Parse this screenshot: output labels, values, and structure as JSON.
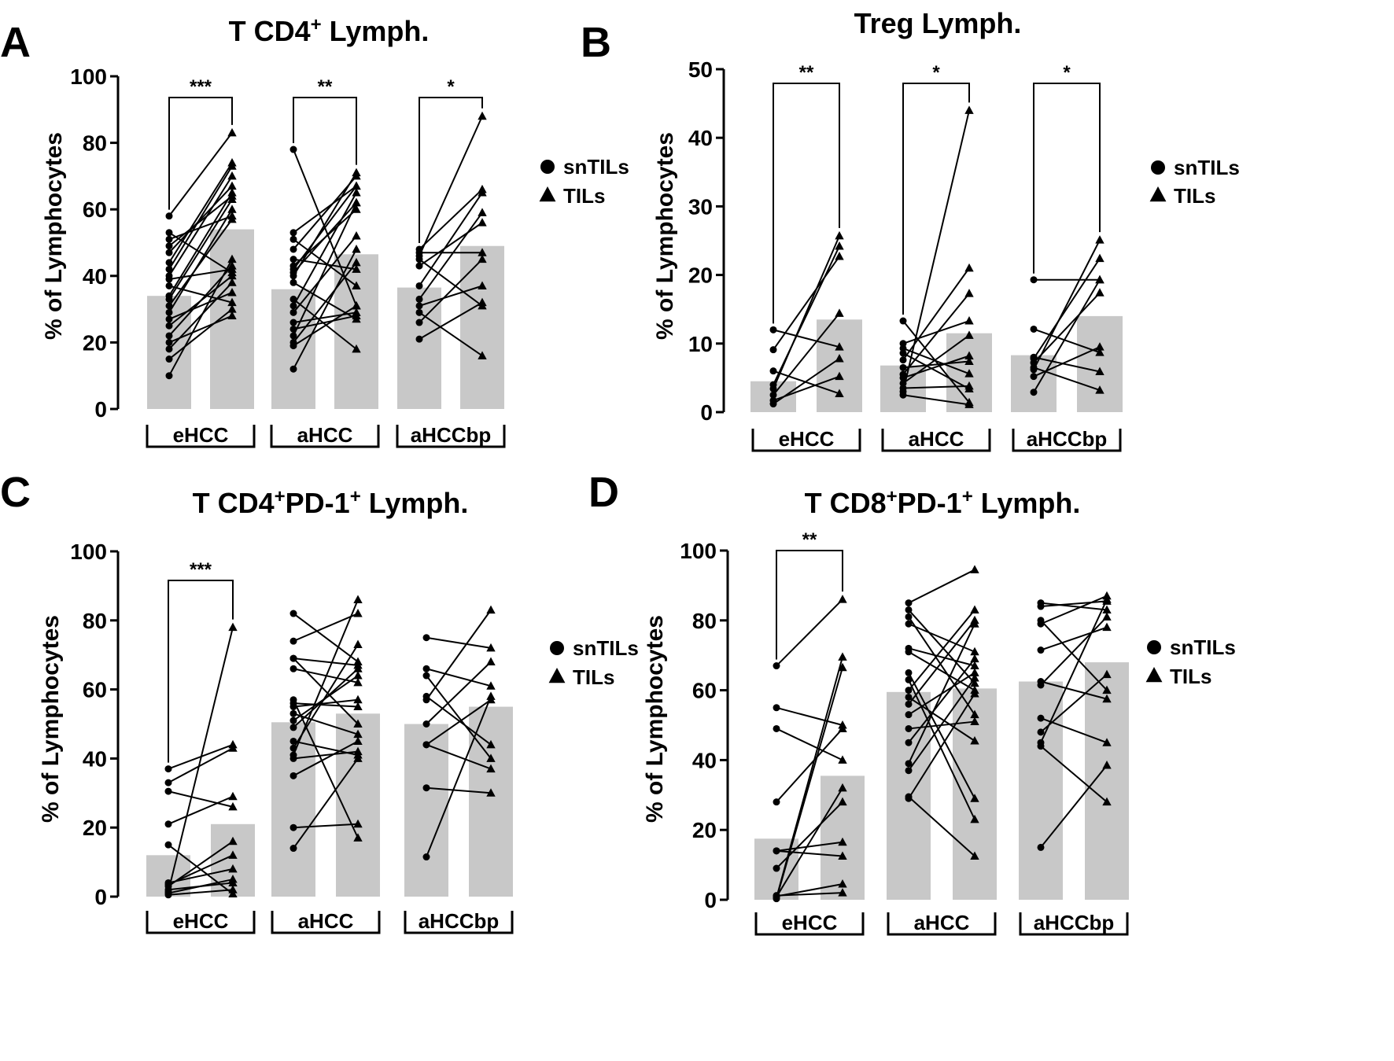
{
  "chart_data": [
    {
      "type": "bar",
      "panel": "A",
      "title": "T CD4",
      "title_sup": "+",
      "title_tail": " Lymph.",
      "ylabel": "% of Lymphocytes",
      "ylim": [
        0,
        100
      ],
      "yticks": [
        0,
        20,
        40,
        60,
        80,
        100
      ],
      "groups": [
        "eHCC",
        "aHCC",
        "aHCCbp"
      ],
      "series_names": [
        "snTILs",
        "TILs"
      ],
      "bar_means": [
        [
          34,
          54
        ],
        [
          36,
          46.5
        ],
        [
          36.5,
          49
        ]
      ],
      "paired": [
        [
          [
            10,
            45
          ],
          [
            15,
            30
          ],
          [
            18,
            38
          ],
          [
            20,
            28
          ],
          [
            22,
            43
          ],
          [
            25,
            40
          ],
          [
            27,
            35
          ],
          [
            29,
            60
          ],
          [
            31,
            57
          ],
          [
            33,
            63
          ],
          [
            34,
            65
          ],
          [
            37,
            32
          ],
          [
            39,
            42
          ],
          [
            40,
            70
          ],
          [
            42,
            73
          ],
          [
            44,
            74
          ],
          [
            47,
            67
          ],
          [
            49,
            64
          ],
          [
            51,
            58
          ],
          [
            53,
            41
          ],
          [
            58,
            83
          ]
        ],
        [
          [
            12,
            48
          ],
          [
            19,
            31
          ],
          [
            20,
            44
          ],
          [
            22,
            62
          ],
          [
            24,
            28
          ],
          [
            26,
            29
          ],
          [
            29,
            52
          ],
          [
            31,
            65
          ],
          [
            33,
            18
          ],
          [
            38,
            27
          ],
          [
            40,
            71
          ],
          [
            41,
            62
          ],
          [
            42,
            67
          ],
          [
            43,
            60
          ],
          [
            45,
            42
          ],
          [
            48,
            70
          ],
          [
            51,
            37
          ],
          [
            53,
            67
          ],
          [
            78,
            31
          ]
        ],
        [
          [
            21,
            32
          ],
          [
            26,
            45
          ],
          [
            29,
            16
          ],
          [
            31,
            37
          ],
          [
            33,
            59
          ],
          [
            37,
            65
          ],
          [
            43,
            56
          ],
          [
            45,
            31
          ],
          [
            46,
            88
          ],
          [
            47,
            47
          ],
          [
            48,
            66
          ]
        ]
      ],
      "significance": [
        "***",
        "**",
        "*"
      ]
    },
    {
      "type": "bar",
      "panel": "B",
      "title": "Treg Lymph.",
      "ylabel": "% of Lymphocytes",
      "ylim": [
        0,
        50
      ],
      "yticks": [
        0,
        10,
        20,
        30,
        40,
        50
      ],
      "groups": [
        "eHCC",
        "aHCC",
        "aHCCbp"
      ],
      "series_names": [
        "snTILs",
        "TILs"
      ],
      "bar_means": [
        [
          4.5,
          13.5
        ],
        [
          6.8,
          11.5
        ],
        [
          8.3,
          14
        ]
      ],
      "paired": [
        [
          [
            1.2,
            7.8
          ],
          [
            1.7,
            5.2
          ],
          [
            2.5,
            14.4
          ],
          [
            3.4,
            25.7
          ],
          [
            4,
            24.2
          ],
          [
            6,
            2.7
          ],
          [
            9.1,
            22.7
          ],
          [
            12,
            9.5
          ]
        ],
        [
          [
            2.5,
            1.1
          ],
          [
            3,
            44
          ],
          [
            3.5,
            3.8
          ],
          [
            4.2,
            11.2
          ],
          [
            5,
            8.2
          ],
          [
            5.5,
            17.3
          ],
          [
            6.5,
            7.4
          ],
          [
            7.6,
            21
          ],
          [
            8.6,
            3.4
          ],
          [
            9.3,
            5.6
          ],
          [
            10,
            13.3
          ],
          [
            13.3,
            1.4
          ]
        ],
        [
          [
            2.9,
            19.3
          ],
          [
            5.2,
            9.5
          ],
          [
            6.2,
            25.1
          ],
          [
            7.2,
            17.4
          ],
          [
            7.8,
            22.4
          ],
          [
            8,
            5.9
          ],
          [
            12.1,
            8.7
          ],
          [
            19.3,
            19.3
          ],
          [
            6.5,
            3.2
          ]
        ]
      ],
      "significance": [
        "**",
        "*",
        "*"
      ]
    },
    {
      "type": "bar",
      "panel": "C",
      "title": "T CD4",
      "title_sup": "+",
      "title_mid": "PD-1",
      "title_sup2": "+",
      "title_tail": " Lymph.",
      "ylabel": "% of Lymphocytes",
      "ylim": [
        0,
        100
      ],
      "yticks": [
        0,
        20,
        40,
        60,
        80,
        100
      ],
      "groups": [
        "eHCC",
        "aHCC",
        "aHCCbp"
      ],
      "series_names": [
        "snTILs",
        "TILs"
      ],
      "bar_means": [
        [
          12,
          21
        ],
        [
          50.5,
          53
        ],
        [
          50,
          55
        ]
      ],
      "paired": [
        [
          [
            0.5,
            2
          ],
          [
            1,
            5
          ],
          [
            2,
            4
          ],
          [
            3,
            16
          ],
          [
            3.5,
            12
          ],
          [
            4,
            8
          ],
          [
            15,
            0.8
          ],
          [
            21,
            29
          ],
          [
            30.5,
            26
          ],
          [
            33,
            43
          ],
          [
            37,
            44
          ],
          [
            1.5,
            78
          ]
        ],
        [
          [
            14,
            40
          ],
          [
            20,
            21
          ],
          [
            35,
            45
          ],
          [
            40,
            42
          ],
          [
            41,
            86
          ],
          [
            43,
            73
          ],
          [
            45,
            41
          ],
          [
            49,
            66
          ],
          [
            51,
            64
          ],
          [
            53,
            47
          ],
          [
            55,
            57
          ],
          [
            56,
            55
          ],
          [
            57,
            17
          ],
          [
            66,
            62
          ],
          [
            69,
            67
          ],
          [
            69,
            50
          ],
          [
            74,
            82
          ],
          [
            82,
            68
          ]
        ],
        [
          [
            11.5,
            58
          ],
          [
            31.5,
            30
          ],
          [
            44,
            57
          ],
          [
            50,
            68
          ],
          [
            57,
            83
          ],
          [
            58,
            44
          ],
          [
            64,
            40
          ],
          [
            66,
            61
          ],
          [
            75,
            72
          ],
          [
            44,
            37
          ]
        ]
      ],
      "significance": [
        "***",
        "",
        ""
      ]
    },
    {
      "type": "bar",
      "panel": "D",
      "title": "T CD8",
      "title_sup": "+",
      "title_mid": "PD-1",
      "title_sup2": "+",
      "title_tail": " Lymph.",
      "ylabel": "% of Lymphocytes",
      "ylim": [
        0,
        100
      ],
      "yticks": [
        0,
        20,
        40,
        60,
        80,
        100
      ],
      "groups": [
        "eHCC",
        "aHCC",
        "aHCCbp"
      ],
      "series_names": [
        "snTILs",
        "TILs"
      ],
      "bar_means": [
        [
          17.5,
          35.5
        ],
        [
          59.5,
          60.5
        ],
        [
          62.5,
          68
        ]
      ],
      "paired": [
        [
          [
            0.3,
            66.5
          ],
          [
            0.6,
            69.5
          ],
          [
            1,
            4.5
          ],
          [
            1.2,
            2
          ],
          [
            9,
            28
          ],
          [
            14,
            12.5
          ],
          [
            14,
            16.5
          ],
          [
            28,
            49
          ],
          [
            49,
            40
          ],
          [
            55,
            50
          ],
          [
            67,
            86
          ],
          [
            0.8,
            32
          ]
        ],
        [
          [
            29,
            59
          ],
          [
            29.5,
            12.5
          ],
          [
            37,
            63.5
          ],
          [
            39,
            79
          ],
          [
            45,
            69
          ],
          [
            49,
            51
          ],
          [
            53,
            65
          ],
          [
            56,
            80
          ],
          [
            58,
            45.5
          ],
          [
            60,
            83
          ],
          [
            63,
            23
          ],
          [
            65,
            29
          ],
          [
            71,
            60
          ],
          [
            72,
            67
          ],
          [
            79,
            71
          ],
          [
            81,
            53
          ],
          [
            83,
            62
          ],
          [
            85,
            94.5
          ]
        ],
        [
          [
            15,
            38.5
          ],
          [
            44,
            28
          ],
          [
            45,
            86
          ],
          [
            48,
            64.5
          ],
          [
            52,
            45
          ],
          [
            61.5,
            81
          ],
          [
            62.5,
            57.5
          ],
          [
            71.5,
            78
          ],
          [
            79,
            87
          ],
          [
            80,
            60
          ],
          [
            84,
            85.5
          ],
          [
            85,
            83
          ]
        ]
      ],
      "significance": [
        "**",
        "",
        ""
      ]
    }
  ]
}
